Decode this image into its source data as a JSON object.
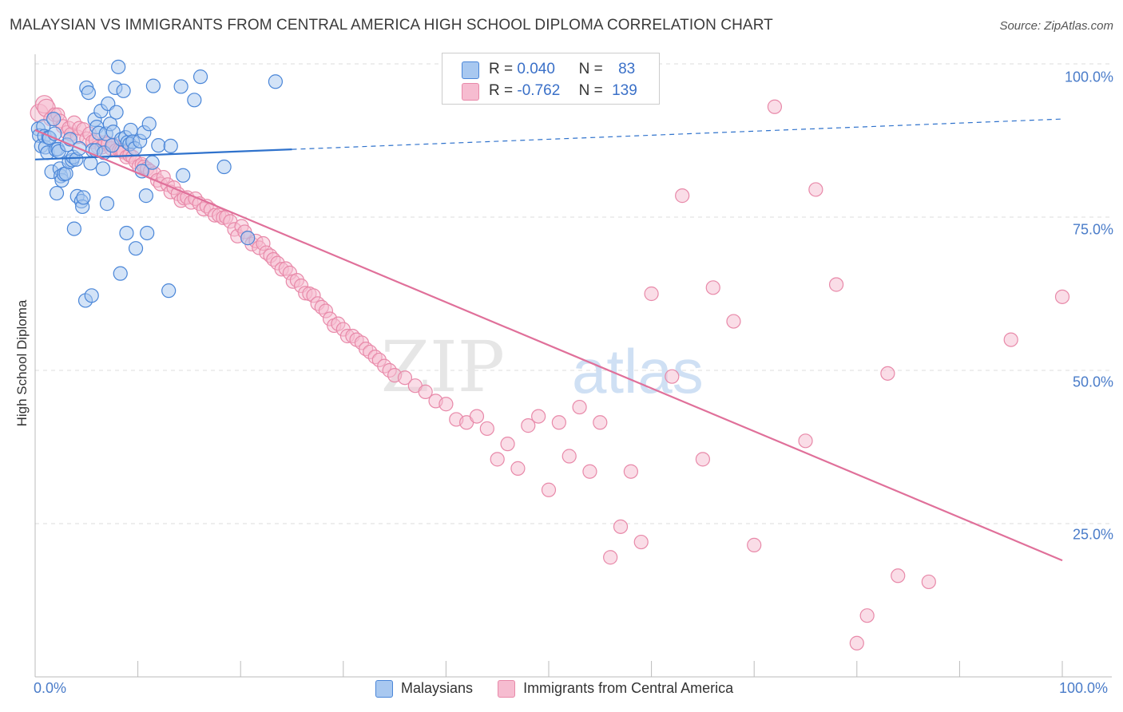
{
  "title": "MALAYSIAN VS IMMIGRANTS FROM CENTRAL AMERICA HIGH SCHOOL DIPLOMA CORRELATION CHART",
  "source": "Source: ZipAtlas.com",
  "watermark": {
    "zip": "ZIP",
    "atlas": "atlas"
  },
  "legend_top": {
    "rows": [
      {
        "r_label": "R =",
        "r_value": "0.040",
        "n_label": "N =",
        "n_value": "83"
      },
      {
        "r_label": "R =",
        "r_value": "-0.762",
        "n_label": "N =",
        "n_value": "139"
      }
    ]
  },
  "legend_bottom": [
    "Malaysians",
    "Immigrants from Central America"
  ],
  "colors": {
    "blue_fill": "#a8c8f0",
    "blue_stroke": "#4a86d8",
    "blue_line": "#2f72cc",
    "pink_fill": "#f6bcd0",
    "pink_stroke": "#e889a9",
    "pink_line": "#e0709a",
    "grid": "#dddddd",
    "tick_text": "#4a7cc9"
  },
  "chart_data": {
    "type": "scatter",
    "title": "MALAYSIAN VS IMMIGRANTS FROM CENTRAL AMERICA HIGH SCHOOL DIPLOMA CORRELATION CHART",
    "xlabel": "",
    "ylabel": "High School Diploma",
    "xlim": [
      0,
      100
    ],
    "ylim": [
      0,
      100
    ],
    "x_tick_labels": [
      "0.0%",
      "100.0%"
    ],
    "y_ticks": [
      25,
      50,
      75,
      100
    ],
    "y_tick_labels": [
      "25.0%",
      "50.0%",
      "75.0%",
      "100.0%"
    ],
    "series": [
      {
        "name": "Malaysians",
        "r": 0.04,
        "n": 83,
        "trend": {
          "x0": 0,
          "y0": 84.4,
          "x1": 100,
          "y1": 91.0,
          "solid_until": 25
        },
        "points": [
          [
            0.3,
            89.4
          ],
          [
            0.4,
            88.3
          ],
          [
            0.6,
            86.6
          ],
          [
            0.8,
            89.8
          ],
          [
            0.9,
            88.2
          ],
          [
            1.0,
            86.4
          ],
          [
            1.2,
            85.5
          ],
          [
            1.3,
            88.0
          ],
          [
            1.4,
            87.9
          ],
          [
            1.6,
            82.4
          ],
          [
            1.8,
            91.0
          ],
          [
            1.9,
            88.6
          ],
          [
            2.0,
            86.0
          ],
          [
            2.1,
            78.9
          ],
          [
            2.2,
            86.1
          ],
          [
            2.3,
            85.7
          ],
          [
            2.4,
            82.9
          ],
          [
            2.5,
            81.7
          ],
          [
            2.6,
            81.0
          ],
          [
            2.8,
            82.0
          ],
          [
            3.0,
            82.1
          ],
          [
            3.1,
            86.8
          ],
          [
            3.3,
            84.0
          ],
          [
            3.4,
            87.7
          ],
          [
            3.6,
            84.3
          ],
          [
            3.7,
            84.8
          ],
          [
            3.8,
            73.1
          ],
          [
            4.0,
            84.4
          ],
          [
            4.1,
            78.4
          ],
          [
            4.3,
            86.2
          ],
          [
            4.5,
            77.6
          ],
          [
            4.6,
            76.7
          ],
          [
            4.7,
            78.2
          ],
          [
            4.9,
            61.4
          ],
          [
            5.0,
            96.1
          ],
          [
            5.2,
            95.3
          ],
          [
            5.4,
            83.8
          ],
          [
            5.5,
            62.2
          ],
          [
            5.6,
            85.9
          ],
          [
            5.8,
            90.9
          ],
          [
            5.9,
            85.9
          ],
          [
            6.0,
            89.7
          ],
          [
            6.2,
            88.7
          ],
          [
            6.4,
            92.3
          ],
          [
            6.6,
            82.9
          ],
          [
            6.7,
            85.5
          ],
          [
            6.9,
            88.6
          ],
          [
            7.0,
            77.2
          ],
          [
            7.1,
            93.5
          ],
          [
            7.3,
            90.2
          ],
          [
            7.5,
            86.7
          ],
          [
            7.6,
            88.9
          ],
          [
            7.8,
            96.1
          ],
          [
            7.9,
            92.1
          ],
          [
            8.1,
            99.5
          ],
          [
            8.3,
            65.8
          ],
          [
            8.4,
            87.7
          ],
          [
            8.6,
            95.6
          ],
          [
            8.8,
            88.0
          ],
          [
            8.9,
            72.4
          ],
          [
            9.0,
            87.2
          ],
          [
            9.2,
            86.9
          ],
          [
            9.3,
            89.2
          ],
          [
            9.5,
            87.3
          ],
          [
            9.7,
            86.2
          ],
          [
            9.8,
            69.9
          ],
          [
            10.2,
            87.4
          ],
          [
            10.4,
            82.5
          ],
          [
            10.6,
            88.8
          ],
          [
            10.8,
            78.5
          ],
          [
            10.9,
            72.4
          ],
          [
            11.1,
            90.2
          ],
          [
            11.4,
            83.9
          ],
          [
            11.5,
            96.4
          ],
          [
            12.0,
            86.7
          ],
          [
            13.0,
            63.0
          ],
          [
            13.2,
            86.6
          ],
          [
            14.2,
            96.3
          ],
          [
            14.4,
            81.8
          ],
          [
            15.5,
            94.1
          ],
          [
            16.1,
            97.9
          ],
          [
            18.4,
            83.2
          ],
          [
            20.7,
            71.6
          ],
          [
            23.4,
            97.1
          ]
        ]
      },
      {
        "name": "Immigrants from Central America",
        "r": -0.762,
        "n": 139,
        "trend": {
          "x0": 0,
          "y0": 89.2,
          "x1": 100,
          "y1": 19.0
        },
        "points": [
          [
            0.4,
            92.0
          ],
          [
            0.9,
            93.4
          ],
          [
            1.1,
            92.8
          ],
          [
            1.5,
            91.0
          ],
          [
            1.9,
            91.7
          ],
          [
            2.2,
            91.7
          ],
          [
            2.4,
            90.7
          ],
          [
            2.7,
            89.8
          ],
          [
            3.1,
            88.8
          ],
          [
            3.3,
            89.5
          ],
          [
            3.5,
            88.5
          ],
          [
            3.8,
            90.4
          ],
          [
            4.1,
            88.1
          ],
          [
            4.3,
            89.5
          ],
          [
            4.7,
            89.3
          ],
          [
            5.0,
            87.8
          ],
          [
            5.3,
            88.6
          ],
          [
            5.6,
            87.3
          ],
          [
            5.9,
            87.6
          ],
          [
            6.1,
            86.4
          ],
          [
            6.5,
            86.4
          ],
          [
            6.8,
            87.2
          ],
          [
            7.1,
            87.0
          ],
          [
            7.4,
            86.2
          ],
          [
            7.6,
            86.8
          ],
          [
            7.9,
            85.9
          ],
          [
            8.2,
            85.9
          ],
          [
            8.4,
            85.8
          ],
          [
            8.6,
            85.6
          ],
          [
            8.9,
            84.8
          ],
          [
            9.2,
            85.1
          ],
          [
            9.5,
            84.8
          ],
          [
            9.8,
            84.0
          ],
          [
            10.1,
            83.3
          ],
          [
            10.4,
            83.6
          ],
          [
            10.6,
            83.2
          ],
          [
            10.9,
            82.9
          ],
          [
            11.2,
            82.5
          ],
          [
            11.6,
            82.1
          ],
          [
            11.9,
            81.0
          ],
          [
            12.2,
            80.4
          ],
          [
            12.5,
            81.5
          ],
          [
            12.9,
            80.3
          ],
          [
            13.2,
            79.1
          ],
          [
            13.5,
            79.8
          ],
          [
            13.9,
            78.8
          ],
          [
            14.2,
            77.7
          ],
          [
            14.5,
            78.1
          ],
          [
            14.8,
            78.2
          ],
          [
            15.2,
            77.4
          ],
          [
            15.6,
            78.0
          ],
          [
            16.0,
            77.2
          ],
          [
            16.4,
            76.3
          ],
          [
            16.7,
            76.8
          ],
          [
            17.1,
            76.2
          ],
          [
            17.5,
            75.3
          ],
          [
            17.9,
            75.3
          ],
          [
            18.3,
            74.9
          ],
          [
            18.6,
            75.0
          ],
          [
            19.0,
            74.3
          ],
          [
            19.4,
            73.0
          ],
          [
            19.7,
            71.9
          ],
          [
            20.1,
            73.5
          ],
          [
            20.4,
            72.6
          ],
          [
            20.7,
            71.6
          ],
          [
            21.1,
            70.6
          ],
          [
            21.5,
            71.1
          ],
          [
            21.8,
            70.0
          ],
          [
            22.2,
            70.7
          ],
          [
            22.5,
            69.2
          ],
          [
            22.9,
            68.7
          ],
          [
            23.2,
            68.1
          ],
          [
            23.6,
            67.5
          ],
          [
            24.0,
            66.5
          ],
          [
            24.4,
            66.6
          ],
          [
            24.8,
            65.9
          ],
          [
            25.1,
            64.5
          ],
          [
            25.5,
            64.7
          ],
          [
            25.9,
            63.8
          ],
          [
            26.3,
            62.6
          ],
          [
            26.7,
            62.5
          ],
          [
            27.1,
            62.2
          ],
          [
            27.5,
            60.9
          ],
          [
            27.9,
            60.3
          ],
          [
            28.3,
            59.7
          ],
          [
            28.7,
            58.4
          ],
          [
            29.1,
            57.3
          ],
          [
            29.5,
            57.6
          ],
          [
            30.0,
            56.7
          ],
          [
            30.4,
            55.6
          ],
          [
            30.9,
            55.6
          ],
          [
            31.3,
            55.0
          ],
          [
            31.8,
            54.5
          ],
          [
            32.2,
            53.5
          ],
          [
            32.6,
            53.0
          ],
          [
            33.1,
            52.2
          ],
          [
            33.5,
            51.7
          ],
          [
            34.0,
            50.7
          ],
          [
            34.5,
            50.0
          ],
          [
            35.0,
            49.2
          ],
          [
            36.0,
            48.8
          ],
          [
            37.0,
            47.5
          ],
          [
            38.0,
            46.5
          ],
          [
            39.0,
            45.0
          ],
          [
            40.0,
            44.5
          ],
          [
            41.0,
            42.0
          ],
          [
            42.0,
            41.5
          ],
          [
            43.0,
            42.5
          ],
          [
            44.0,
            40.5
          ],
          [
            45.0,
            35.5
          ],
          [
            46.0,
            38.0
          ],
          [
            47.0,
            34.0
          ],
          [
            48.0,
            41.0
          ],
          [
            49.0,
            42.5
          ],
          [
            50.0,
            30.5
          ],
          [
            51.0,
            41.5
          ],
          [
            52.0,
            36.0
          ],
          [
            53.0,
            44.0
          ],
          [
            54.0,
            33.5
          ],
          [
            55.0,
            41.5
          ],
          [
            56.0,
            19.5
          ],
          [
            57.0,
            24.5
          ],
          [
            58.0,
            33.5
          ],
          [
            59.0,
            22.0
          ],
          [
            60.0,
            62.5
          ],
          [
            62.0,
            49.0
          ],
          [
            63.0,
            78.5
          ],
          [
            65.0,
            35.5
          ],
          [
            66.0,
            63.5
          ],
          [
            68.0,
            58.0
          ],
          [
            70.0,
            21.5
          ],
          [
            72.0,
            93.0
          ],
          [
            75.0,
            38.5
          ],
          [
            76.0,
            79.5
          ],
          [
            78.0,
            64.0
          ],
          [
            80.0,
            5.5
          ],
          [
            81.0,
            10.0
          ],
          [
            83.0,
            49.5
          ],
          [
            84.0,
            16.5
          ],
          [
            87.0,
            15.5
          ],
          [
            95.0,
            55.0
          ],
          [
            100.0,
            62.0
          ]
        ]
      }
    ]
  }
}
